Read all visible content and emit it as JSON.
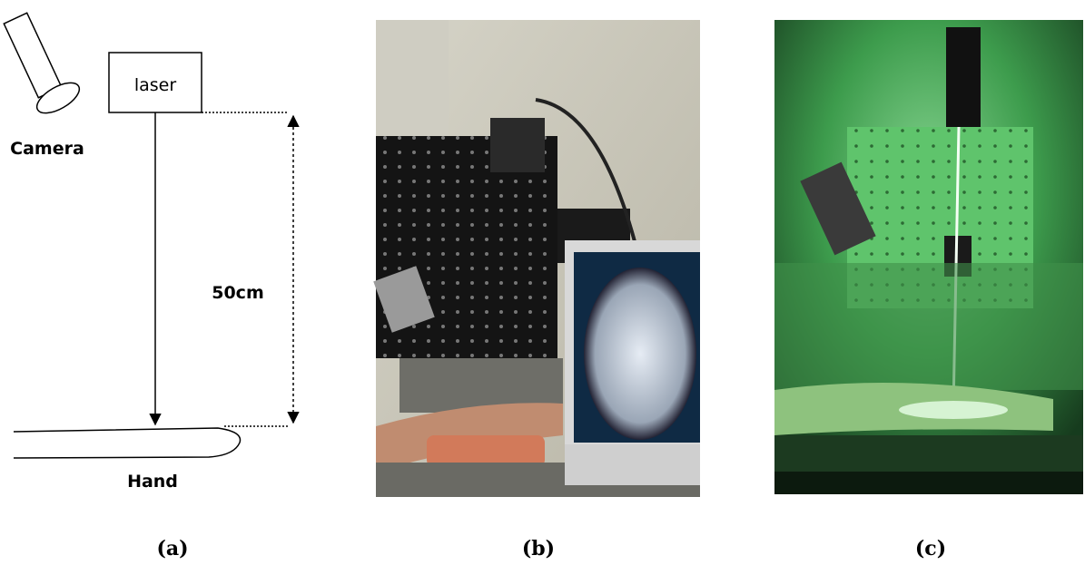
{
  "diagram": {
    "laser": "laser",
    "camera": "Camera",
    "distance": "50cm",
    "hand": "Hand"
  },
  "captions": [
    "(a)",
    "(b)",
    "(c)"
  ]
}
